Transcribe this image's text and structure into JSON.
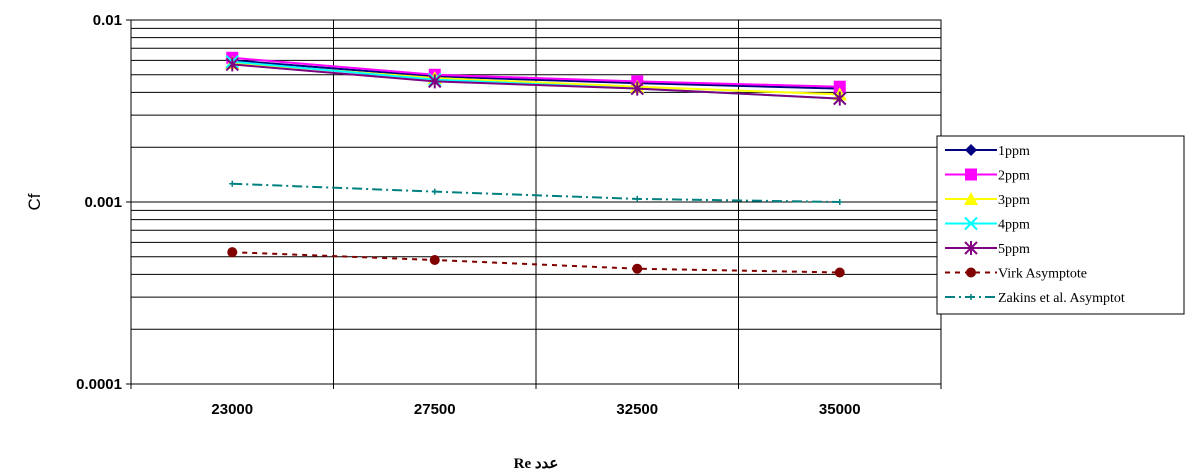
{
  "chart_data": {
    "type": "line",
    "title": "",
    "xlabel": "Re عدد",
    "ylabel": "Cf",
    "y_scale": "log",
    "ylim": [
      0.0001,
      0.01
    ],
    "y_ticks": [
      "0.01",
      "0.001",
      "0.0001"
    ],
    "categories": [
      "23000",
      "27500",
      "32500",
      "35000"
    ],
    "grid": "on",
    "legend_position": "right",
    "series": [
      {
        "name": "1ppm",
        "values": [
          0.006,
          0.0049,
          0.0045,
          0.0042
        ],
        "color": "#000080",
        "marker": "diamond",
        "dash": "solid"
      },
      {
        "name": "2ppm",
        "values": [
          0.0062,
          0.005,
          0.0046,
          0.0043
        ],
        "color": "#ff00ff",
        "marker": "square",
        "dash": "solid"
      },
      {
        "name": "3ppm",
        "values": [
          0.0058,
          0.0048,
          0.0043,
          0.0039
        ],
        "color": "#ffff00",
        "marker": "triangle",
        "dash": "solid"
      },
      {
        "name": "4ppm",
        "values": [
          0.0059,
          0.0047,
          0.0042,
          0.0037
        ],
        "color": "#00ffff",
        "marker": "x",
        "dash": "solid"
      },
      {
        "name": "5ppm",
        "values": [
          0.0057,
          0.0046,
          0.0042,
          0.0037
        ],
        "color": "#800080",
        "marker": "star",
        "dash": "solid"
      },
      {
        "name": "Virk Asymptote",
        "values": [
          0.00053,
          0.00048,
          0.00043,
          0.00041
        ],
        "color": "#800000",
        "marker": "circle",
        "dash": "dotted"
      },
      {
        "name": "Zakins et al. Asymptot",
        "values": [
          0.00126,
          0.00114,
          0.00104,
          0.001
        ],
        "color": "#008080",
        "marker": "plus",
        "dash": "dashdot"
      }
    ]
  }
}
